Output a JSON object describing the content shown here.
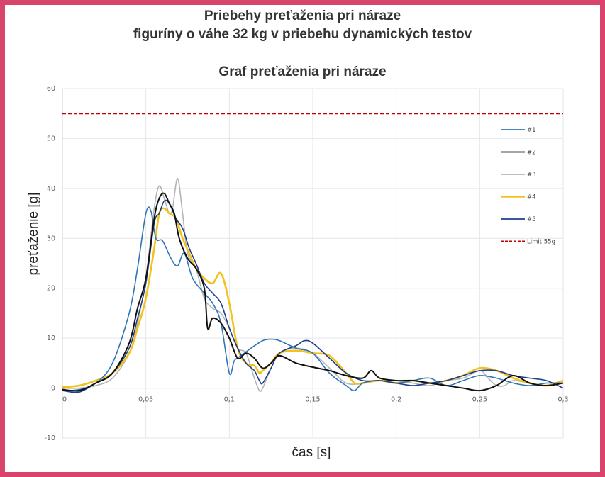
{
  "header": {
    "title_line1": "Priebehy preťaženia pri náraze",
    "title_line2": "figuríny o váhe 32 kg v priebehu dynamických testov"
  },
  "chart_data": {
    "type": "line",
    "title": "Graf preťaženia pri náraze",
    "xlabel": "čas [s]",
    "ylabel": "preťaženie [g]",
    "xlim": [
      0,
      0.3
    ],
    "ylim": [
      -10,
      60
    ],
    "x_ticks": [
      0,
      0.05,
      0.1,
      0.15,
      0.2,
      0.25,
      0.3
    ],
    "x_tick_labels": [
      "0",
      "0,05",
      "0,1",
      "0,15",
      "0,2",
      "0,25",
      "0,3"
    ],
    "y_ticks": [
      -10,
      0,
      10,
      20,
      30,
      40,
      50,
      60
    ],
    "y_tick_labels": [
      "-10",
      "0",
      "10",
      "20",
      "30",
      "40",
      "50",
      "60"
    ],
    "grid": true,
    "legend_position": "right",
    "series": [
      {
        "name": "#1",
        "color": "#2e75b6",
        "x": [
          0,
          0.01,
          0.02,
          0.03,
          0.04,
          0.045,
          0.05,
          0.053,
          0.056,
          0.06,
          0.065,
          0.069,
          0.073,
          0.078,
          0.085,
          0.09,
          0.095,
          0.1,
          0.103,
          0.107,
          0.113,
          0.12,
          0.125,
          0.13,
          0.14,
          0.15,
          0.16,
          0.17,
          0.175,
          0.18,
          0.19,
          0.2,
          0.21,
          0.22,
          0.23,
          0.24,
          0.25,
          0.26,
          0.27,
          0.28,
          0.29,
          0.3
        ],
        "y": [
          -0.5,
          -0.3,
          1,
          5,
          15,
          24,
          35,
          35.5,
          30,
          29.5,
          26,
          24.5,
          27,
          22,
          19,
          17,
          13,
          3,
          5.5,
          6.5,
          8,
          9.5,
          9.8,
          9.5,
          8,
          7,
          3,
          0.5,
          -0.5,
          1,
          1.5,
          1,
          1.5,
          2,
          0.5,
          1.5,
          2.5,
          2,
          1,
          0.5,
          1,
          1
        ]
      },
      {
        "name": "#2",
        "color": "#111111",
        "x": [
          0,
          0.01,
          0.02,
          0.03,
          0.04,
          0.045,
          0.05,
          0.055,
          0.058,
          0.061,
          0.064,
          0.067,
          0.07,
          0.075,
          0.08,
          0.085,
          0.087,
          0.09,
          0.095,
          0.1,
          0.105,
          0.11,
          0.115,
          0.12,
          0.125,
          0.13,
          0.14,
          0.15,
          0.16,
          0.17,
          0.18,
          0.185,
          0.19,
          0.2,
          0.21,
          0.22,
          0.23,
          0.24,
          0.25,
          0.26,
          0.27,
          0.28,
          0.29,
          0.3
        ],
        "y": [
          -0.3,
          -0.5,
          1,
          3,
          9,
          16,
          22,
          34,
          38,
          39,
          37,
          35,
          30,
          26,
          24,
          20,
          12,
          14,
          13,
          10,
          6,
          7,
          6,
          4,
          5,
          6.5,
          5,
          4.2,
          3.5,
          2.5,
          2,
          3.5,
          2,
          1.5,
          1.5,
          1,
          0.5,
          0,
          -0.5,
          0.5,
          2.5,
          1,
          0.5,
          1
        ]
      },
      {
        "name": "#3",
        "color": "#b4b4b4",
        "x": [
          0,
          0.01,
          0.02,
          0.03,
          0.04,
          0.045,
          0.05,
          0.055,
          0.058,
          0.061,
          0.064,
          0.066,
          0.069,
          0.072,
          0.075,
          0.08,
          0.085,
          0.09,
          0.095,
          0.1,
          0.105,
          0.11,
          0.115,
          0.118,
          0.12,
          0.125,
          0.13,
          0.14,
          0.15,
          0.16,
          0.17,
          0.18,
          0.19,
          0.2,
          0.21,
          0.22,
          0.23,
          0.24,
          0.25,
          0.255,
          0.26,
          0.265,
          0.27,
          0.28,
          0.29,
          0.3
        ],
        "y": [
          0,
          0,
          0.5,
          2,
          7,
          13,
          22,
          36,
          40.5,
          38,
          35,
          36,
          42,
          35,
          27,
          24,
          18,
          16,
          15,
          12,
          8,
          7,
          2,
          -0.5,
          0,
          4,
          7,
          8,
          7,
          4,
          1,
          1,
          1.5,
          1.5,
          1,
          0.5,
          1.5,
          2,
          3.5,
          2,
          0.5,
          0.5,
          1.5,
          1,
          0.5,
          1
        ]
      },
      {
        "name": "#4",
        "color": "#f2c21b",
        "x": [
          0,
          0.01,
          0.02,
          0.03,
          0.04,
          0.045,
          0.05,
          0.055,
          0.058,
          0.061,
          0.064,
          0.068,
          0.072,
          0.076,
          0.08,
          0.085,
          0.09,
          0.095,
          0.1,
          0.105,
          0.11,
          0.115,
          0.118,
          0.12,
          0.125,
          0.13,
          0.14,
          0.15,
          0.16,
          0.17,
          0.175,
          0.18,
          0.19,
          0.2,
          0.21,
          0.22,
          0.23,
          0.24,
          0.25,
          0.26,
          0.27,
          0.28,
          0.29,
          0.3
        ],
        "y": [
          0.2,
          0.5,
          1.5,
          3,
          7,
          12,
          18,
          28,
          35,
          36,
          35,
          34,
          30,
          27,
          24,
          22,
          21,
          23,
          17,
          8,
          5,
          4.5,
          3,
          3.5,
          5,
          7,
          7.5,
          7,
          6.5,
          3,
          1,
          1,
          1.5,
          1,
          1.5,
          1,
          1.5,
          2.5,
          4,
          3.5,
          2,
          1,
          0.5,
          1.5
        ]
      },
      {
        "name": "#5",
        "color": "#1f3f8c",
        "x": [
          0,
          0.01,
          0.02,
          0.03,
          0.04,
          0.045,
          0.05,
          0.055,
          0.058,
          0.061,
          0.064,
          0.068,
          0.072,
          0.076,
          0.08,
          0.085,
          0.09,
          0.095,
          0.1,
          0.105,
          0.11,
          0.115,
          0.118,
          0.12,
          0.125,
          0.13,
          0.14,
          0.145,
          0.15,
          0.16,
          0.17,
          0.18,
          0.19,
          0.2,
          0.21,
          0.22,
          0.23,
          0.24,
          0.25,
          0.26,
          0.27,
          0.28,
          0.29,
          0.3
        ],
        "y": [
          -0.5,
          -0.8,
          1,
          3,
          8,
          14,
          21,
          33,
          35,
          37.5,
          37,
          34,
          32,
          28,
          25,
          21,
          19,
          17,
          12,
          8,
          5,
          3.5,
          1.5,
          1,
          4,
          7,
          8.5,
          9.5,
          9,
          6,
          3,
          1.5,
          1.5,
          1,
          0.5,
          1,
          1.5,
          2.5,
          3.5,
          3.5,
          2.5,
          2,
          1.5,
          0
        ]
      },
      {
        "name": "Limit 55g",
        "color": "#c00000",
        "dashed": true,
        "x": [
          0,
          0.3
        ],
        "y": [
          55,
          55
        ]
      }
    ]
  }
}
